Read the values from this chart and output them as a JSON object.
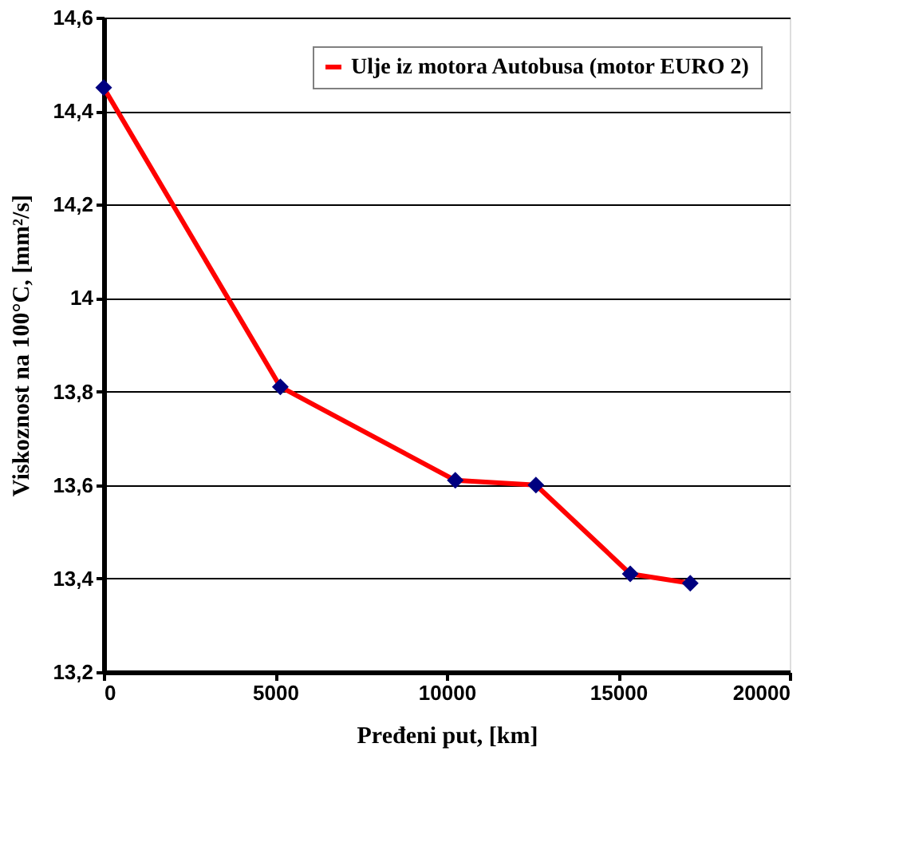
{
  "chart_data": {
    "type": "line",
    "xlabel": "Pređeni put, [km]",
    "ylabel": "Viskoznost na 100°C, [mm²/s]",
    "x": [
      0,
      5150,
      10250,
      12600,
      15350,
      17100
    ],
    "series": [
      {
        "name": "Ulje iz motora Autobusa (motor EURO 2)",
        "color": "#ff0000",
        "values": [
          14.45,
          13.81,
          13.61,
          13.6,
          13.41,
          13.39
        ]
      }
    ],
    "xlim": [
      0,
      20000
    ],
    "xticks": [
      0,
      5000,
      10000,
      15000,
      20000
    ],
    "ylim": [
      13.2,
      14.6
    ],
    "yticks": [
      {
        "value": 13.2,
        "label": "13,2"
      },
      {
        "value": 13.4,
        "label": "13,4"
      },
      {
        "value": 13.6,
        "label": "13,6"
      },
      {
        "value": 13.8,
        "label": "13,8"
      },
      {
        "value": 14,
        "label": "14"
      },
      {
        "value": 14.2,
        "label": "14,2"
      },
      {
        "value": 14.4,
        "label": "14,4"
      },
      {
        "value": 14.6,
        "label": "14,6"
      }
    ],
    "grid": "y",
    "legend": "top right",
    "marker": "diamond",
    "line_style": "solid"
  }
}
